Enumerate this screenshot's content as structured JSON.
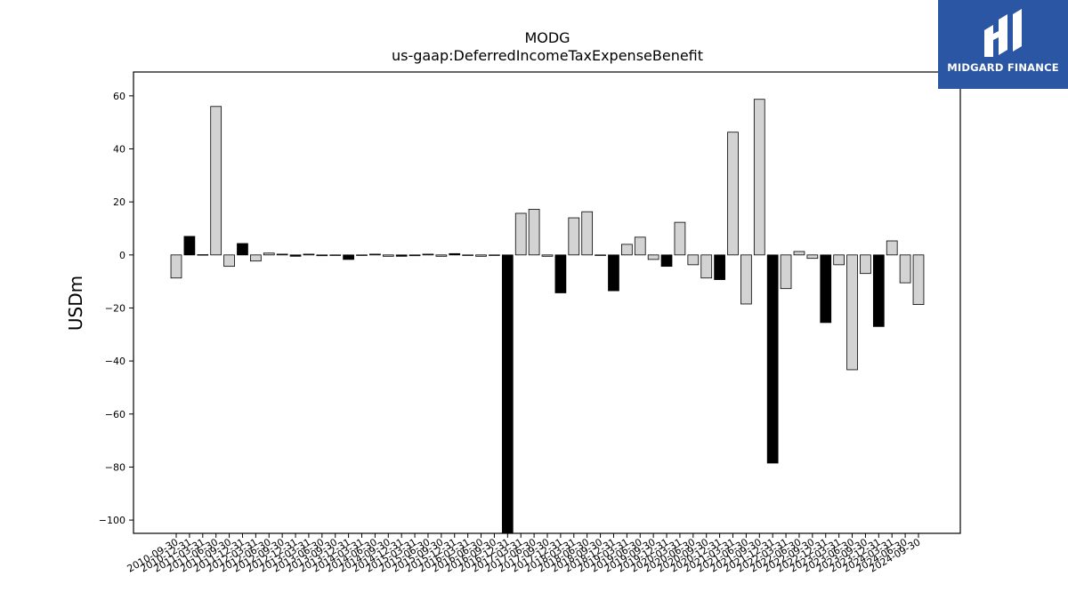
{
  "brand": {
    "name": "MIDGARD FINANCE",
    "bg_color": "#2a56a4",
    "icon": "midgard-logo-icon"
  },
  "chart_data": {
    "type": "bar",
    "title": "MODG",
    "subtitle": "us-gaap:DeferredIncomeTaxExpenseBenefit",
    "xlabel": "",
    "ylabel": "USDm",
    "ylim": [
      -105,
      69
    ],
    "yticks": [
      60,
      40,
      20,
      0,
      -20,
      -40,
      -60,
      -80,
      -100
    ],
    "grid": false,
    "colors": {
      "quarter": "#d3d3d3",
      "year_end": "#000000",
      "edge": "#000000"
    },
    "categories": [
      "2010-09-30",
      "2010-12-31",
      "2011-03-31",
      "2011-06-30",
      "2011-09-30",
      "2011-12-31",
      "2012-03-31",
      "2012-06-30",
      "2012-09-30",
      "2012-12-31",
      "2013-03-31",
      "2013-06-30",
      "2013-09-30",
      "2013-12-31",
      "2014-03-31",
      "2014-06-30",
      "2014-09-30",
      "2014-12-31",
      "2015-03-31",
      "2015-06-30",
      "2015-09-30",
      "2015-12-31",
      "2016-03-31",
      "2016-06-30",
      "2016-09-30",
      "2016-12-31",
      "2017-03-31",
      "2017-06-30",
      "2017-09-30",
      "2017-12-31",
      "2018-03-31",
      "2018-06-30",
      "2018-09-30",
      "2018-12-31",
      "2019-03-31",
      "2019-06-30",
      "2019-09-30",
      "2019-12-31",
      "2020-03-31",
      "2020-06-30",
      "2020-09-30",
      "2020-12-31",
      "2021-03-31",
      "2021-06-30",
      "2021-09-30",
      "2021-12-31",
      "2022-03-31",
      "2022-06-30",
      "2022-09-30",
      "2022-12-31",
      "2023-03-31",
      "2023-06-30",
      "2023-09-30",
      "2023-12-31",
      "2024-03-31",
      "2024-06-30",
      "2024-09-30"
    ],
    "values": [
      -8.7,
      7.0,
      0.1,
      56.0,
      -4.3,
      4.3,
      -2.3,
      0.7,
      0.3,
      -0.5,
      0.3,
      -0.3,
      -0.2,
      -1.7,
      -0.2,
      0.3,
      -0.5,
      -0.5,
      -0.3,
      0.3,
      -0.5,
      0.5,
      -0.2,
      -0.5,
      -0.2,
      -110.0,
      15.7,
      17.2,
      -0.5,
      -14.3,
      14.0,
      16.3,
      -0.2,
      -13.5,
      4.0,
      6.7,
      -1.7,
      -4.3,
      12.3,
      -3.7,
      -8.7,
      -9.3,
      46.3,
      -18.5,
      58.7,
      -78.5,
      -12.7,
      1.3,
      -1.3,
      -25.5,
      -3.7,
      -43.3,
      -7.0,
      -27.0,
      5.3,
      -10.5,
      -18.7
    ]
  }
}
